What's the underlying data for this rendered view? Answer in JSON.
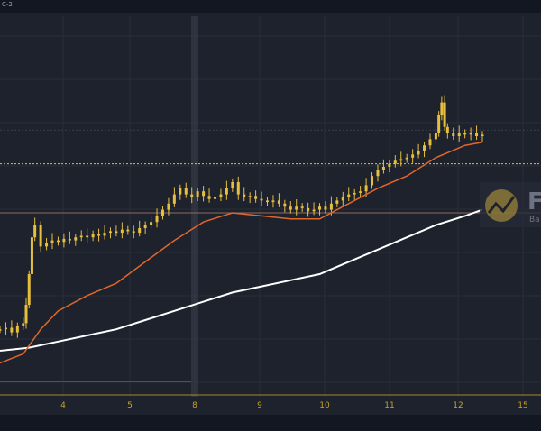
{
  "window": {
    "title_fragment": "C-2"
  },
  "colors": {
    "background": "#1e222d",
    "candle": "#e6bf3f",
    "ma_fast": "#e0672a",
    "ma_slow": "#ffffff",
    "grid": "#2a2e39",
    "crosshair": "#3a3f4c",
    "resistance": "#8e6a5f",
    "axis_text": "#c9a227"
  },
  "logo": {
    "text_letter": "F",
    "subtext_fragment": "Ba"
  },
  "chart_data": {
    "type": "candlestick",
    "title": "",
    "xlabel": "",
    "ylabel": "",
    "x_ticks": [
      "4",
      "5",
      "8",
      "9",
      "10",
      "11",
      "12",
      "15"
    ],
    "crosshair_x": 8.0,
    "grid": true,
    "y_range": [
      0,
      100
    ],
    "closes": [
      [
        3.0,
        22
      ],
      [
        3.1,
        22.5
      ],
      [
        3.2,
        21
      ],
      [
        3.3,
        23
      ],
      [
        3.4,
        24
      ],
      [
        3.45,
        30
      ],
      [
        3.5,
        40
      ],
      [
        3.55,
        52
      ],
      [
        3.6,
        56
      ],
      [
        3.7,
        49
      ],
      [
        3.8,
        50
      ],
      [
        3.9,
        51
      ],
      [
        4.0,
        50.5
      ],
      [
        4.1,
        51.5
      ],
      [
        4.2,
        51
      ],
      [
        4.3,
        52
      ],
      [
        4.4,
        52.5
      ],
      [
        4.5,
        52
      ],
      [
        4.6,
        53
      ],
      [
        4.7,
        52.5
      ],
      [
        4.8,
        53.5
      ],
      [
        4.9,
        54
      ],
      [
        5.0,
        53.5
      ],
      [
        5.1,
        54.5
      ],
      [
        5.2,
        54
      ],
      [
        5.3,
        53.5
      ],
      [
        5.4,
        55
      ],
      [
        5.5,
        56
      ],
      [
        5.6,
        57
      ],
      [
        5.7,
        59
      ],
      [
        5.8,
        61
      ],
      [
        5.9,
        63
      ],
      [
        6.0,
        66
      ],
      [
        6.1,
        68
      ],
      [
        6.2,
        66
      ],
      [
        6.3,
        65
      ],
      [
        6.4,
        67
      ],
      [
        6.5,
        65.5
      ],
      [
        6.6,
        64.5
      ],
      [
        6.7,
        65
      ],
      [
        6.8,
        66
      ],
      [
        6.9,
        68
      ],
      [
        7.0,
        70
      ],
      [
        7.1,
        66
      ],
      [
        7.2,
        65
      ],
      [
        7.3,
        65.5
      ],
      [
        7.4,
        64.5
      ],
      [
        7.5,
        64
      ],
      [
        7.6,
        63.5
      ],
      [
        7.7,
        64
      ],
      [
        7.8,
        63
      ],
      [
        7.9,
        62
      ],
      [
        8.0,
        61
      ],
      [
        8.1,
        62
      ],
      [
        8.2,
        61.5
      ],
      [
        8.3,
        60.5
      ],
      [
        8.4,
        61
      ],
      [
        8.5,
        62
      ],
      [
        8.6,
        61
      ],
      [
        8.7,
        63
      ],
      [
        8.8,
        64
      ],
      [
        8.9,
        65
      ],
      [
        9.0,
        66
      ],
      [
        9.1,
        66.5
      ],
      [
        9.2,
        67
      ],
      [
        9.3,
        69
      ],
      [
        9.4,
        72
      ],
      [
        9.5,
        74
      ],
      [
        9.6,
        75
      ],
      [
        9.7,
        76
      ],
      [
        9.8,
        77
      ],
      [
        9.9,
        77.5
      ],
      [
        10.0,
        78
      ],
      [
        10.1,
        79
      ],
      [
        10.2,
        80
      ],
      [
        10.3,
        82
      ],
      [
        10.4,
        84
      ],
      [
        10.5,
        86
      ],
      [
        10.55,
        92
      ],
      [
        10.6,
        96
      ],
      [
        10.65,
        88
      ],
      [
        10.7,
        86
      ],
      [
        10.8,
        85
      ],
      [
        10.9,
        86
      ],
      [
        11.0,
        85.5
      ],
      [
        11.1,
        86
      ],
      [
        11.2,
        85
      ],
      [
        11.3,
        85.5
      ]
    ],
    "ma_fast": [
      [
        3.0,
        11
      ],
      [
        3.4,
        14
      ],
      [
        3.7,
        22
      ],
      [
        4.0,
        28
      ],
      [
        4.5,
        33
      ],
      [
        5.0,
        37
      ],
      [
        5.5,
        44
      ],
      [
        6.0,
        51
      ],
      [
        6.5,
        57
      ],
      [
        7.0,
        60
      ],
      [
        7.5,
        59
      ],
      [
        8.0,
        58
      ],
      [
        8.5,
        58
      ],
      [
        9.0,
        63
      ],
      [
        9.5,
        68
      ],
      [
        10.0,
        72
      ],
      [
        10.5,
        78
      ],
      [
        11.0,
        82
      ],
      [
        11.3,
        83
      ]
    ],
    "ma_slow": [
      [
        3.0,
        15
      ],
      [
        3.5,
        16
      ],
      [
        4.0,
        18
      ],
      [
        4.5,
        20
      ],
      [
        5.0,
        22
      ],
      [
        5.5,
        25
      ],
      [
        6.0,
        28
      ],
      [
        6.5,
        31
      ],
      [
        7.0,
        34
      ],
      [
        7.5,
        36
      ],
      [
        8.0,
        38
      ],
      [
        8.5,
        40
      ],
      [
        9.0,
        44
      ],
      [
        9.5,
        48
      ],
      [
        10.0,
        52
      ],
      [
        10.5,
        56
      ],
      [
        11.0,
        59
      ],
      [
        11.3,
        61
      ]
    ],
    "horizontal_lines": [
      {
        "y": 76,
        "style": "dotted",
        "color": "#e6bf3f"
      },
      {
        "y": 87,
        "style": "dotted",
        "color": "#3a3f4c"
      },
      {
        "y": 60,
        "style": "solid",
        "color": "#8e6a5f"
      },
      {
        "y": 5,
        "style": "solid",
        "color": "#8e6a5f",
        "x_end": 8.0
      }
    ]
  }
}
